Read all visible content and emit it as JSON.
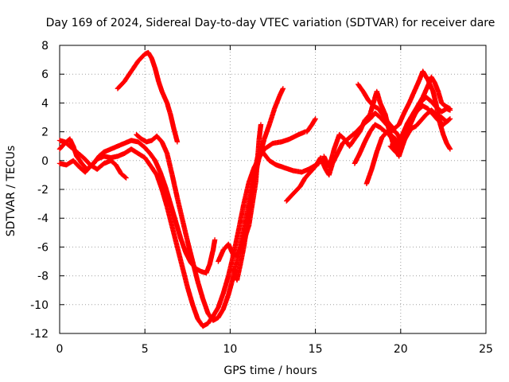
{
  "chart_data": {
    "type": "scatter",
    "title": "Day 169 of 2024, Sidereal Day-to-day VTEC variation (SDTVAR) for receiver dare",
    "xlabel": "GPS time / hours",
    "ylabel": "SDTVAR / TECUs",
    "xlim": [
      0,
      25
    ],
    "ylim": [
      -12,
      8
    ],
    "xticks": [
      0,
      5,
      10,
      15,
      20,
      25
    ],
    "yticks": [
      -12,
      -10,
      -8,
      -6,
      -4,
      -2,
      0,
      2,
      4,
      6,
      8
    ],
    "grid": true,
    "marker": "+",
    "color": "#ff0000",
    "series": [
      {
        "points": [
          [
            0,
            0.8
          ],
          [
            0.3,
            1.2
          ],
          [
            0.6,
            1.5
          ],
          [
            0.8,
            1.0
          ],
          [
            1.0,
            0.3
          ],
          [
            1.3,
            -0.2
          ],
          [
            1.6,
            -0.6
          ],
          [
            2.0,
            -0.2
          ],
          [
            2.3,
            0.3
          ],
          [
            2.6,
            0.6
          ],
          [
            3.0,
            0.8
          ],
          [
            3.4,
            1.0
          ],
          [
            3.8,
            1.2
          ],
          [
            4.2,
            1.4
          ],
          [
            4.6,
            1.3
          ],
          [
            5.0,
            0.9
          ],
          [
            5.3,
            0.5
          ],
          [
            5.6,
            0.0
          ],
          [
            5.9,
            -0.8
          ],
          [
            6.2,
            -1.8
          ],
          [
            6.5,
            -3.0
          ],
          [
            6.8,
            -4.2
          ],
          [
            7.1,
            -5.4
          ],
          [
            7.4,
            -6.4
          ],
          [
            7.7,
            -7.1
          ],
          [
            8.0,
            -7.5
          ],
          [
            8.3,
            -7.7
          ],
          [
            8.6,
            -7.8
          ],
          [
            8.8,
            -7.2
          ],
          [
            9.0,
            -6.2
          ],
          [
            9.1,
            -5.5
          ]
        ]
      },
      {
        "points": [
          [
            0,
            1.4
          ],
          [
            0.3,
            1.3
          ],
          [
            0.6,
            1.0
          ],
          [
            1.0,
            0.6
          ],
          [
            1.4,
            0.2
          ],
          [
            1.8,
            -0.3
          ],
          [
            2.2,
            -0.6
          ],
          [
            2.6,
            -0.2
          ],
          [
            3.0,
            0.0
          ],
          [
            3.3,
            -0.3
          ],
          [
            3.6,
            -0.9
          ],
          [
            3.9,
            -1.2
          ]
        ]
      },
      {
        "points": [
          [
            0,
            -0.2
          ],
          [
            0.4,
            -0.3
          ],
          [
            0.8,
            0.0
          ],
          [
            1.2,
            -0.5
          ],
          [
            1.5,
            -0.8
          ],
          [
            1.8,
            -0.4
          ],
          [
            2.2,
            0.1
          ],
          [
            2.6,
            0.3
          ],
          [
            3.0,
            0.2
          ],
          [
            3.4,
            0.3
          ],
          [
            3.8,
            0.5
          ],
          [
            4.2,
            0.8
          ],
          [
            4.6,
            0.5
          ],
          [
            5.0,
            0.2
          ],
          [
            5.3,
            -0.3
          ],
          [
            5.7,
            -1.0
          ],
          [
            6.0,
            -2.0
          ],
          [
            6.3,
            -3.2
          ],
          [
            6.6,
            -4.6
          ],
          [
            6.9,
            -6.0
          ],
          [
            7.2,
            -7.4
          ],
          [
            7.5,
            -8.8
          ],
          [
            7.8,
            -10.0
          ],
          [
            8.1,
            -11.0
          ],
          [
            8.4,
            -11.5
          ],
          [
            8.7,
            -11.3
          ],
          [
            9.0,
            -10.8
          ],
          [
            9.3,
            -10.2
          ],
          [
            9.6,
            -9.2
          ],
          [
            9.9,
            -8.0
          ],
          [
            10.2,
            -6.5
          ],
          [
            10.5,
            -4.8
          ],
          [
            10.8,
            -3.0
          ],
          [
            11.1,
            -1.5
          ],
          [
            11.4,
            -0.5
          ],
          [
            11.7,
            0.2
          ],
          [
            12.0,
            0.8
          ],
          [
            12.5,
            1.2
          ],
          [
            13.0,
            1.3
          ],
          [
            13.5,
            1.5
          ],
          [
            14.0,
            1.8
          ],
          [
            14.4,
            2.0
          ]
        ]
      },
      {
        "points": [
          [
            3.4,
            5.0
          ],
          [
            3.8,
            5.5
          ],
          [
            4.2,
            6.2
          ],
          [
            4.6,
            6.9
          ],
          [
            5.0,
            7.4
          ],
          [
            5.2,
            7.5
          ],
          [
            5.4,
            7.1
          ],
          [
            5.6,
            6.4
          ],
          [
            5.8,
            5.5
          ],
          [
            6.0,
            4.8
          ],
          [
            6.3,
            4.0
          ],
          [
            6.5,
            3.2
          ],
          [
            6.7,
            2.2
          ],
          [
            6.9,
            1.3
          ]
        ]
      },
      {
        "points": [
          [
            4.5,
            1.8
          ],
          [
            4.8,
            1.5
          ],
          [
            5.1,
            1.3
          ],
          [
            5.4,
            1.4
          ],
          [
            5.7,
            1.7
          ],
          [
            6.0,
            1.3
          ],
          [
            6.3,
            0.5
          ],
          [
            6.6,
            -1.0
          ],
          [
            6.9,
            -2.6
          ],
          [
            7.2,
            -4.1
          ],
          [
            7.5,
            -5.6
          ],
          [
            7.8,
            -7.0
          ],
          [
            8.1,
            -8.4
          ],
          [
            8.4,
            -9.6
          ],
          [
            8.7,
            -10.6
          ],
          [
            9.0,
            -11.1
          ],
          [
            9.3,
            -10.9
          ],
          [
            9.6,
            -10.3
          ],
          [
            9.9,
            -9.3
          ],
          [
            10.2,
            -8.0
          ],
          [
            10.5,
            -6.5
          ],
          [
            10.8,
            -4.8
          ],
          [
            11.1,
            -3.0
          ],
          [
            11.4,
            -1.3
          ],
          [
            11.7,
            0.2
          ],
          [
            12.0,
            1.5
          ],
          [
            12.3,
            2.5
          ],
          [
            12.6,
            3.6
          ],
          [
            12.9,
            4.5
          ],
          [
            13.1,
            5.0
          ]
        ]
      },
      {
        "points": [
          [
            9.3,
            -7.0
          ],
          [
            9.6,
            -6.2
          ],
          [
            9.9,
            -5.8
          ],
          [
            10.2,
            -6.6
          ],
          [
            10.5,
            -6.4
          ],
          [
            10.8,
            -5.6
          ],
          [
            11.1,
            -4.5
          ],
          [
            11.3,
            -3.0
          ],
          [
            11.5,
            -1.5
          ],
          [
            11.6,
            0.0
          ],
          [
            11.7,
            1.5
          ],
          [
            11.8,
            2.5
          ]
        ]
      },
      {
        "points": [
          [
            10.2,
            -7.5
          ],
          [
            10.4,
            -8.3
          ],
          [
            10.6,
            -7.2
          ],
          [
            10.8,
            -6.0
          ],
          [
            11.0,
            -4.5
          ],
          [
            11.2,
            -2.8
          ],
          [
            11.4,
            -1.2
          ],
          [
            11.6,
            0.2
          ],
          [
            11.9,
            0.6
          ],
          [
            12.3,
            0.0
          ],
          [
            12.7,
            -0.3
          ],
          [
            13.2,
            -0.5
          ],
          [
            13.7,
            -0.7
          ],
          [
            14.2,
            -0.8
          ],
          [
            14.6,
            -0.6
          ],
          [
            14.9,
            -0.4
          ],
          [
            15.2,
            -0.2
          ]
        ]
      },
      {
        "points": [
          [
            13.3,
            -2.8
          ],
          [
            13.7,
            -2.3
          ],
          [
            14.1,
            -1.8
          ],
          [
            14.4,
            -1.2
          ],
          [
            14.7,
            -0.8
          ],
          [
            15.0,
            -0.4
          ],
          [
            15.3,
            0.2
          ],
          [
            15.6,
            -0.6
          ],
          [
            15.8,
            -1.0
          ],
          [
            16.0,
            -0.2
          ],
          [
            16.3,
            0.5
          ],
          [
            16.6,
            1.2
          ],
          [
            17.0,
            1.6
          ],
          [
            17.4,
            2.0
          ],
          [
            17.8,
            2.5
          ],
          [
            18.2,
            2.9
          ],
          [
            18.5,
            3.3
          ],
          [
            18.8,
            3.0
          ],
          [
            19.1,
            2.6
          ],
          [
            19.4,
            2.2
          ],
          [
            19.7,
            2.0
          ],
          [
            20.0,
            1.5
          ],
          [
            20.3,
            1.8
          ],
          [
            20.6,
            2.6
          ],
          [
            20.9,
            3.4
          ],
          [
            21.2,
            4.1
          ],
          [
            21.5,
            4.4
          ],
          [
            21.8,
            4.1
          ],
          [
            22.1,
            3.7
          ],
          [
            22.4,
            3.4
          ],
          [
            22.7,
            3.6
          ],
          [
            22.9,
            3.5
          ]
        ]
      },
      {
        "points": [
          [
            14.5,
            2.0
          ],
          [
            14.8,
            2.5
          ],
          [
            15.0,
            2.9
          ]
        ]
      },
      {
        "points": [
          [
            15.5,
            0.3
          ],
          [
            15.8,
            -0.5
          ],
          [
            16.1,
            0.8
          ],
          [
            16.4,
            1.8
          ],
          [
            16.7,
            1.5
          ],
          [
            17.0,
            1.0
          ],
          [
            17.3,
            1.5
          ],
          [
            17.6,
            2.0
          ],
          [
            17.9,
            2.8
          ],
          [
            18.2,
            3.2
          ],
          [
            18.4,
            4.0
          ],
          [
            18.6,
            4.8
          ],
          [
            18.8,
            4.0
          ],
          [
            19.1,
            3.2
          ],
          [
            19.3,
            2.2
          ],
          [
            19.6,
            1.0
          ],
          [
            19.9,
            0.3
          ],
          [
            20.1,
            1.0
          ],
          [
            20.4,
            2.0
          ],
          [
            20.7,
            3.0
          ],
          [
            21.0,
            3.5
          ],
          [
            21.3,
            3.8
          ],
          [
            21.6,
            3.6
          ],
          [
            21.9,
            3.2
          ],
          [
            22.2,
            2.8
          ],
          [
            22.5,
            2.5
          ],
          [
            22.8,
            2.8
          ]
        ]
      },
      {
        "points": [
          [
            17.3,
            -0.2
          ],
          [
            17.6,
            0.5
          ],
          [
            17.9,
            1.3
          ],
          [
            18.2,
            2.0
          ],
          [
            18.5,
            2.5
          ],
          [
            18.8,
            2.3
          ],
          [
            19.1,
            2.0
          ],
          [
            19.4,
            1.8
          ],
          [
            19.7,
            1.5
          ],
          [
            20.0,
            1.2
          ]
        ]
      },
      {
        "points": [
          [
            17.5,
            5.3
          ],
          [
            17.8,
            4.8
          ],
          [
            18.1,
            4.2
          ],
          [
            18.4,
            3.8
          ],
          [
            18.7,
            3.6
          ],
          [
            19.0,
            3.1
          ],
          [
            19.3,
            2.6
          ],
          [
            19.6,
            2.2
          ],
          [
            19.9,
            2.5
          ],
          [
            20.2,
            3.3
          ],
          [
            20.5,
            4.0
          ],
          [
            20.8,
            4.8
          ],
          [
            21.1,
            5.6
          ],
          [
            21.3,
            6.2
          ],
          [
            21.6,
            5.6
          ],
          [
            21.9,
            4.8
          ],
          [
            22.1,
            3.8
          ],
          [
            22.3,
            2.6
          ],
          [
            22.5,
            1.8
          ],
          [
            22.7,
            1.2
          ],
          [
            22.9,
            0.8
          ]
        ]
      },
      {
        "points": [
          [
            18.0,
            -1.6
          ],
          [
            18.3,
            -0.6
          ],
          [
            18.6,
            0.6
          ],
          [
            18.9,
            1.6
          ],
          [
            19.2,
            2.0
          ],
          [
            19.5,
            1.5
          ],
          [
            19.8,
            1.0
          ],
          [
            20.1,
            1.8
          ],
          [
            20.4,
            2.6
          ],
          [
            20.7,
            3.2
          ],
          [
            21.0,
            3.8
          ],
          [
            21.3,
            4.4
          ],
          [
            21.6,
            5.2
          ],
          [
            21.8,
            5.8
          ],
          [
            22.0,
            5.4
          ],
          [
            22.2,
            4.8
          ],
          [
            22.4,
            4.0
          ],
          [
            22.6,
            3.8
          ],
          [
            22.9,
            3.6
          ]
        ]
      },
      {
        "points": [
          [
            19.4,
            1.0
          ],
          [
            19.7,
            0.6
          ],
          [
            20.0,
            1.0
          ],
          [
            20.3,
            1.6
          ],
          [
            20.6,
            2.2
          ],
          [
            20.9,
            2.4
          ],
          [
            21.2,
            2.8
          ],
          [
            21.5,
            3.2
          ],
          [
            21.8,
            3.5
          ],
          [
            22.1,
            3.2
          ],
          [
            22.4,
            3.0
          ],
          [
            22.7,
            2.7
          ],
          [
            22.9,
            2.9
          ]
        ]
      }
    ]
  }
}
